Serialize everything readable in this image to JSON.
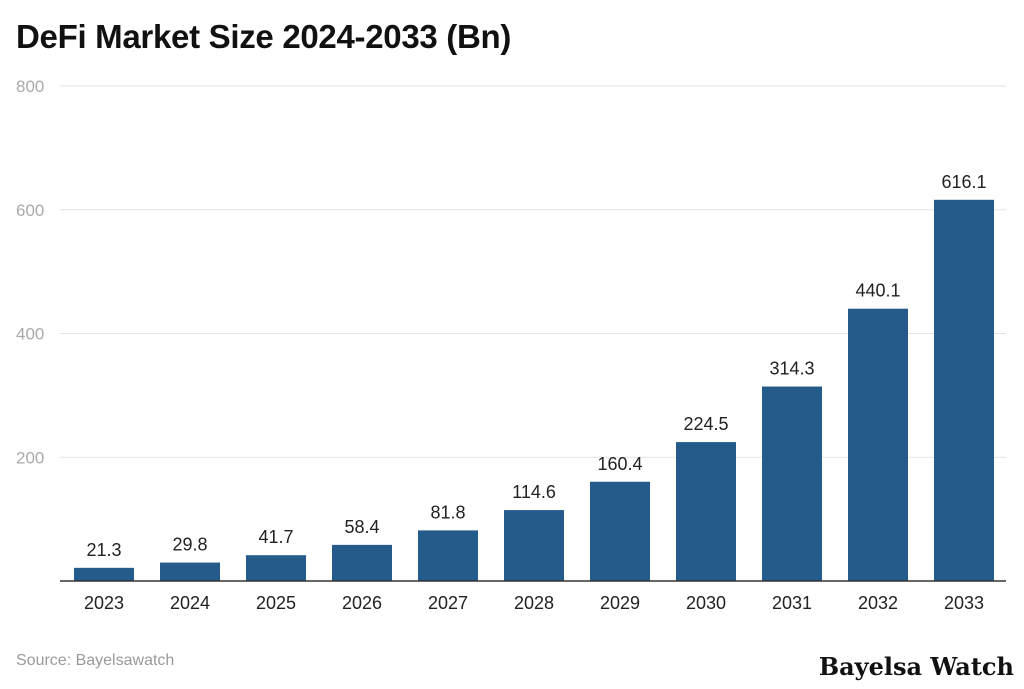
{
  "chart_data": {
    "type": "bar",
    "title": "DeFi Market Size 2024-2033 (Bn)",
    "xlabel": "",
    "ylabel": "",
    "categories": [
      "2023",
      "2024",
      "2025",
      "2026",
      "2027",
      "2028",
      "2029",
      "2030",
      "2031",
      "2032",
      "2033"
    ],
    "values": [
      21.3,
      29.8,
      41.7,
      58.4,
      81.8,
      114.6,
      160.4,
      224.5,
      314.3,
      440.1,
      616.1
    ],
    "value_labels": [
      "21.3",
      "29.8",
      "41.7",
      "58.4",
      "81.8",
      "114.6",
      "160.4",
      "224.5",
      "314.3",
      "440.1",
      "616.1"
    ],
    "ylim": [
      0,
      800
    ],
    "yticks": [
      200,
      400,
      600,
      800
    ],
    "ytick_labels": [
      "200",
      "400",
      "600",
      "800"
    ],
    "grid": true,
    "legend": "none",
    "bar_color": "#245b8b"
  },
  "footer": {
    "source": "Source: Bayelsawatch",
    "brand": "Bayelsa Watch"
  }
}
